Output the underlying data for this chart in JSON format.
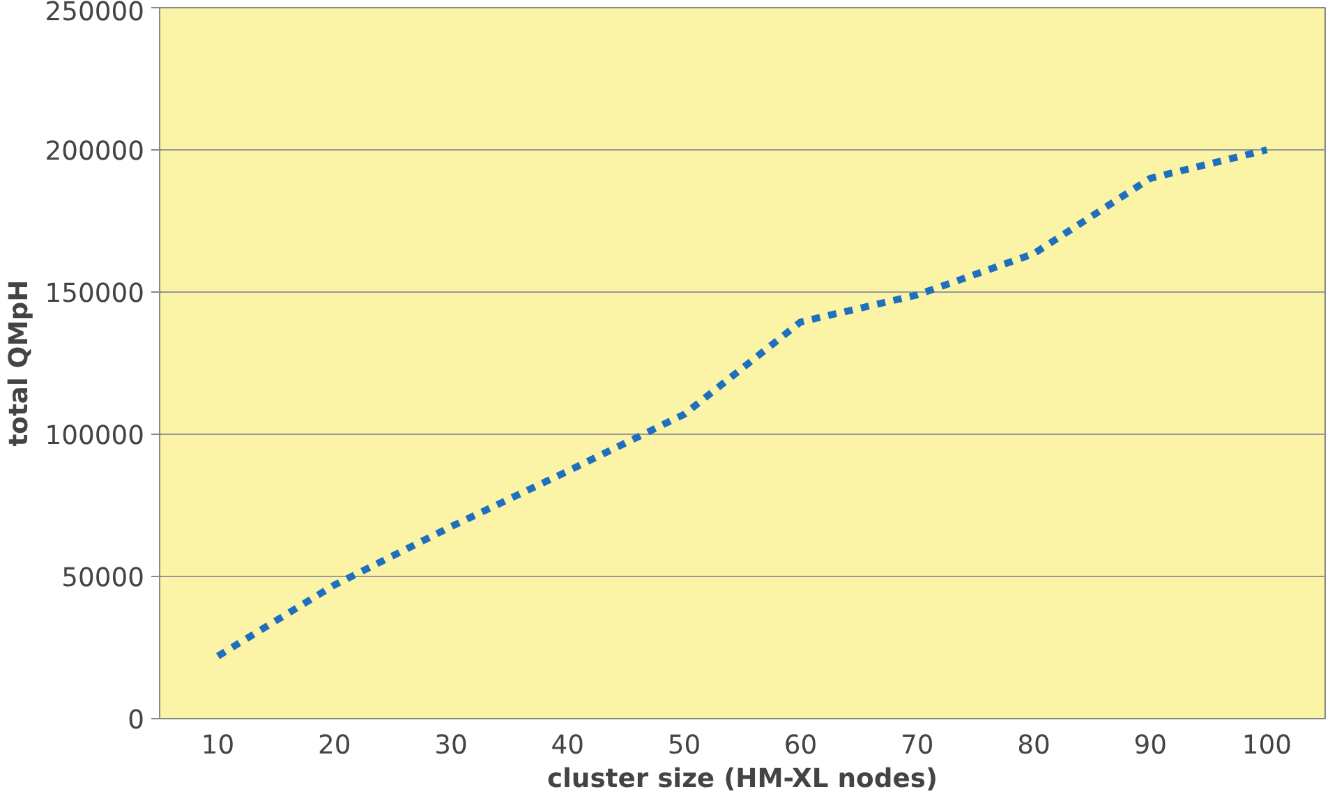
{
  "chart_data": {
    "type": "line",
    "xlabel": "cluster size (HM-XL nodes)",
    "ylabel": "total QMpH",
    "categories": [
      "10",
      "20",
      "30",
      "40",
      "50",
      "60",
      "70",
      "80",
      "90",
      "100"
    ],
    "series": [
      {
        "color": "#1f6fbf",
        "values": [
          22000,
          47000,
          67500,
          87000,
          107000,
          139500,
          149000,
          163500,
          190000,
          200000
        ]
      }
    ],
    "ylim": [
      0,
      250000
    ],
    "yticks": [
      0,
      50000,
      100000,
      150000,
      200000,
      250000
    ],
    "grid": "y",
    "line_style": "dashed",
    "marker": "none"
  }
}
